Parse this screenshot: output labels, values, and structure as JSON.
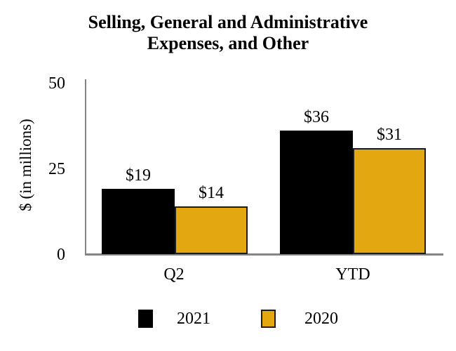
{
  "chart_data": {
    "type": "bar",
    "title": "Selling, General and Administrative Expenses, and Other",
    "title_lines": [
      "Selling, General and Administrative",
      "Expenses, and Other"
    ],
    "ylabel": "$ (in millions)",
    "categories": [
      "Q2",
      "YTD"
    ],
    "series": [
      {
        "name": "2021",
        "color": "#000000",
        "values": [
          19,
          36
        ],
        "data_labels": [
          "$19",
          "$36"
        ]
      },
      {
        "name": "2020",
        "color": "#E3A712",
        "values": [
          14,
          31
        ],
        "data_labels": [
          "$14",
          "$31"
        ]
      }
    ],
    "yticks": [
      0,
      25,
      50
    ],
    "ylim": [
      0,
      50
    ],
    "grid": false,
    "legend_position": "bottom",
    "axis_color": "#848484",
    "bar_border_color": "#1c1c1c"
  }
}
